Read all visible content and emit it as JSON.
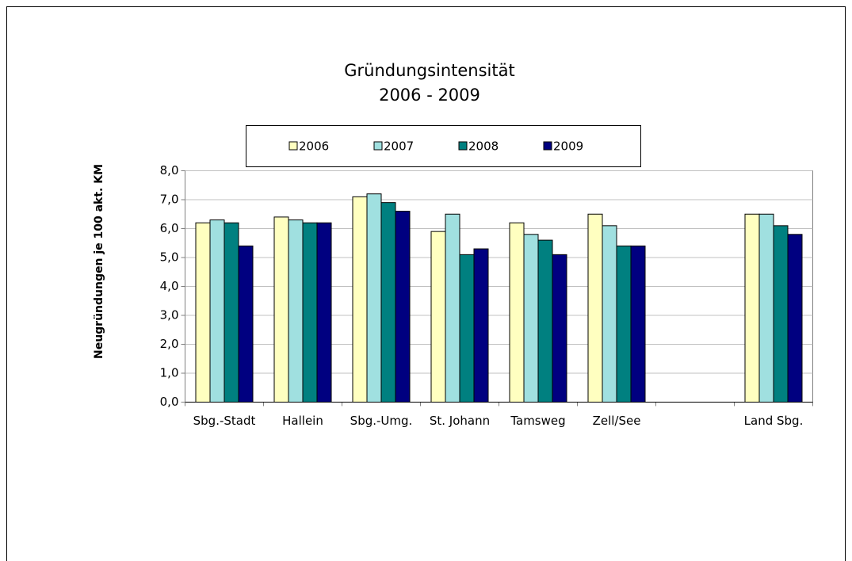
{
  "chart_data": {
    "type": "bar",
    "title": [
      "Gründungsintensität",
      "2006 - 2009"
    ],
    "y_label": "Neugründungen je 100 akt. KM",
    "categories": [
      "Sbg.-Stadt",
      "Hallein",
      "Sbg.-Umg.",
      "St. Johann",
      "Tamsweg",
      "Zell/See",
      null,
      "Land Sbg."
    ],
    "series": [
      {
        "name": "2006",
        "color": "#ffffc0",
        "values": [
          6.2,
          6.4,
          7.1,
          5.9,
          6.2,
          6.5,
          null,
          6.5
        ]
      },
      {
        "name": "2007",
        "color": "#a0e0e0",
        "values": [
          6.3,
          6.3,
          7.2,
          6.5,
          5.8,
          6.1,
          null,
          6.5
        ]
      },
      {
        "name": "2008",
        "color": "#008080",
        "values": [
          6.2,
          6.2,
          6.9,
          5.1,
          5.6,
          5.4,
          null,
          6.1
        ]
      },
      {
        "name": "2009",
        "color": "#000080",
        "values": [
          5.4,
          6.2,
          6.6,
          5.3,
          5.1,
          5.4,
          null,
          5.8
        ]
      }
    ],
    "ylim": [
      0,
      8
    ],
    "yticks": [
      {
        "value": 0,
        "label": "0,0"
      },
      {
        "value": 1,
        "label": "1,0"
      },
      {
        "value": 2,
        "label": "2,0"
      },
      {
        "value": 3,
        "label": "3,0"
      },
      {
        "value": 4,
        "label": "4,0"
      },
      {
        "value": 5,
        "label": "5,0"
      },
      {
        "value": 6,
        "label": "6,0"
      },
      {
        "value": 7,
        "label": "7,0"
      },
      {
        "value": 8,
        "label": "8,0"
      }
    ],
    "grid": true,
    "legend": "top"
  }
}
